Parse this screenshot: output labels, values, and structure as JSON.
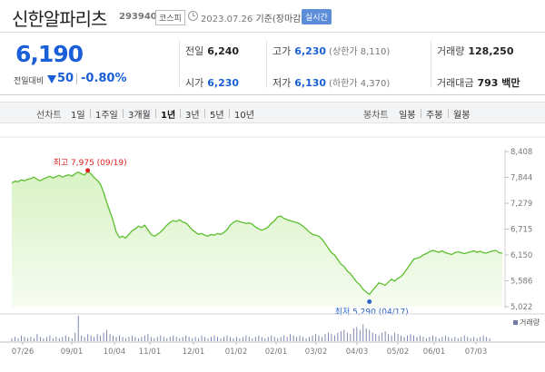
{
  "header": {
    "name": "신한알파리츠",
    "code": "293940",
    "market": "코스피",
    "date": "2023.07.26",
    "date_suffix": "기준(장마감)",
    "realtime": "실시간"
  },
  "info": {
    "price": "6,190",
    "change_label": "전일대비",
    "change": "50",
    "change_pct": "-0.80%",
    "prev_close_label": "전일",
    "prev_close": "6,240",
    "open_label": "시가",
    "open": "6,230",
    "high_label": "고가",
    "high": "6,230",
    "upper_limit": "(상한가 8,110)",
    "low_label": "저가",
    "low": "6,130",
    "lower_limit": "(하한가 4,370)",
    "volume_label": "거래량",
    "volume": "128,250",
    "amount_label": "거래대금",
    "amount": "793 백만"
  },
  "periods": {
    "line_label": "선차트",
    "line_items": [
      "1일",
      "1주일",
      "3개월",
      "1년",
      "3년",
      "5년",
      "10년"
    ],
    "active": "1년",
    "candle_label": "봉차트",
    "candle_items": [
      "일봉",
      "주봉",
      "월봉"
    ]
  },
  "chart_data": {
    "type": "area",
    "yticks": [
      "8,408",
      "7,844",
      "7,279",
      "6,715",
      "6,150",
      "5,586",
      "5,022"
    ],
    "ylim": [
      5022,
      8408
    ],
    "xticks": [
      "07/26",
      "09/01",
      "10/04",
      "11/01",
      "12/01",
      "01/02",
      "02/01",
      "03/02",
      "04/03",
      "05/02",
      "06/01",
      "07/03"
    ],
    "high_label": "최고 7,975 (09/19)",
    "low_label": "최저 5,290 (04/17)",
    "volume_legend": "거래량",
    "colors": {
      "line": "#5bbf2e",
      "fill_top": "#d8f2c4",
      "fill_bottom": "#f6fcf1",
      "high": "#e02020",
      "low": "#2a62c9"
    },
    "series": [
      {
        "values": [
          7720,
          7760,
          7750,
          7790,
          7770,
          7800,
          7820,
          7850,
          7800,
          7770,
          7810,
          7840,
          7870,
          7830,
          7860,
          7890,
          7850,
          7880,
          7900,
          7870,
          7920,
          7960,
          7920,
          7900,
          7975,
          7920,
          7840,
          7780,
          7700,
          7520,
          7300,
          7100,
          6900,
          6650,
          6530,
          6560,
          6520,
          6600,
          6680,
          6720,
          6780,
          6750,
          6800,
          6700,
          6600,
          6560,
          6600,
          6650,
          6720,
          6800,
          6860,
          6900,
          6880,
          6920,
          6870,
          6850,
          6780,
          6700,
          6650,
          6600,
          6620,
          6580,
          6560,
          6600,
          6580,
          6620,
          6600,
          6640,
          6700,
          6800,
          6860,
          6900,
          6880,
          6860,
          6840,
          6850,
          6820,
          6760,
          6720,
          6690,
          6720,
          6760,
          6840,
          6900,
          6980,
          7000,
          6950,
          6920,
          6900,
          6880,
          6860,
          6830,
          6780,
          6720,
          6650,
          6600,
          6580,
          6560,
          6500,
          6400,
          6300,
          6200,
          6150,
          6050,
          5950,
          5900,
          5800,
          5740,
          5650,
          5560,
          5500,
          5400,
          5340,
          5290,
          5380,
          5460,
          5540,
          5520,
          5490,
          5560,
          5620,
          5580,
          5640,
          5680,
          5760,
          5860,
          5960,
          6060,
          6080,
          6100,
          6150,
          6180,
          6220,
          6250,
          6230,
          6210,
          6240,
          6200,
          6180,
          6160,
          6200,
          6220,
          6200,
          6180,
          6200,
          6220,
          6240,
          6210,
          6230,
          6200,
          6190,
          6220,
          6240,
          6250,
          6200,
          6190
        ]
      },
      {
        "values": [
          2,
          3,
          2,
          4,
          3,
          2,
          3,
          2,
          5,
          3,
          2,
          3,
          4,
          2,
          3,
          2,
          3,
          4,
          3,
          2,
          6,
          18,
          4,
          3,
          5,
          4,
          3,
          5,
          4,
          6,
          8,
          5,
          4,
          3,
          4,
          3,
          2,
          3,
          4,
          3,
          2,
          3,
          4,
          5,
          3,
          2,
          3,
          4,
          3,
          2,
          3,
          4,
          3,
          2,
          3,
          4,
          3,
          2,
          3,
          2,
          4,
          3,
          2,
          3,
          4,
          3,
          2,
          3,
          4,
          3,
          2,
          3,
          2,
          3,
          4,
          3,
          2,
          3,
          4,
          3,
          2,
          3,
          4,
          3,
          2,
          3,
          4,
          3,
          5,
          4,
          3,
          4,
          3,
          2,
          3,
          4,
          5,
          4,
          3,
          5,
          6,
          5,
          4,
          6,
          7,
          8,
          6,
          5,
          9,
          10,
          8,
          12,
          9,
          8,
          6,
          5,
          4,
          6,
          7,
          5,
          4,
          6,
          5,
          4,
          3,
          4,
          5,
          4,
          3,
          4,
          3,
          2,
          3,
          4,
          3,
          2,
          3,
          4,
          3,
          2,
          3,
          2,
          3,
          4,
          3,
          2,
          3,
          2,
          3,
          4,
          3,
          2
        ]
      }
    ]
  }
}
